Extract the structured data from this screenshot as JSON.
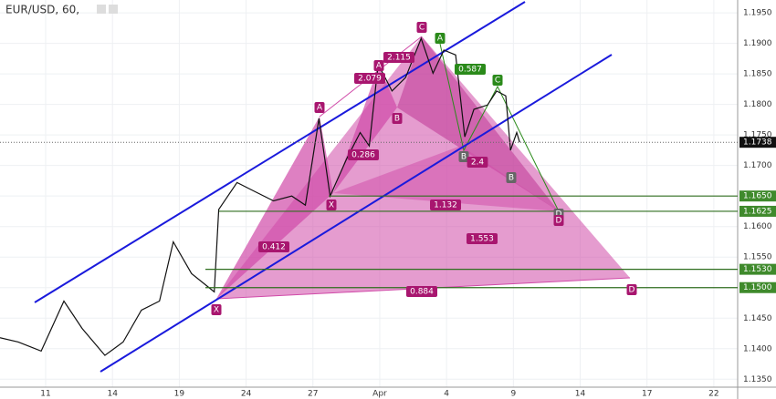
{
  "chart_data": {
    "type": "line",
    "title": "EUR/USD, 60,",
    "x": [
      -2.05,
      -1.23,
      -0.2,
      0.82,
      1.64,
      2.66,
      3.48,
      4.3,
      5.11,
      5.73,
      6.55,
      7.57,
      7.77,
      8.59,
      9.41,
      10.23,
      11.05,
      11.66,
      12.27,
      12.77,
      13.5,
      14.12,
      14.53,
      14.93,
      15.55,
      16.16,
      16.86,
      17.39,
      17.88,
      18.41,
      18.82,
      19.23,
      19.84,
      20.25,
      20.66,
      20.87,
      21.15,
      21.28
    ],
    "series": [
      {
        "name": "EUR/USD",
        "color": "#111111",
        "values": [
          1.1418,
          1.1411,
          1.1396,
          1.1478,
          1.1433,
          1.1389,
          1.1411,
          1.1463,
          1.1478,
          1.1575,
          1.1523,
          1.1493,
          1.1628,
          1.1672,
          1.1657,
          1.1642,
          1.165,
          1.1635,
          1.1777,
          1.165,
          1.171,
          1.1754,
          1.1732,
          1.1866,
          1.1822,
          1.1844,
          1.1908,
          1.1851,
          1.1889,
          1.1881,
          1.1747,
          1.1792,
          1.1799,
          1.1822,
          1.1814,
          1.1725,
          1.1754,
          1.1738
        ]
      }
    ],
    "xlim": [
      -2.05,
      31.07
    ],
    "xticks": [
      {
        "value": 0,
        "label": "11"
      },
      {
        "value": 3,
        "label": "14"
      },
      {
        "value": 6,
        "label": "19"
      },
      {
        "value": 9,
        "label": "24"
      },
      {
        "value": 12,
        "label": "27"
      },
      {
        "value": 15,
        "label": "Apr"
      },
      {
        "value": 18,
        "label": "4"
      },
      {
        "value": 21,
        "label": "9"
      },
      {
        "value": 24,
        "label": "14"
      },
      {
        "value": 27,
        "label": "17"
      },
      {
        "value": 30,
        "label": "22"
      }
    ],
    "ylim": [
      1.1337,
      1.1971
    ],
    "yticks": [
      {
        "value": 1.195,
        "label": "1.1950"
      },
      {
        "value": 1.19,
        "label": "1.1900"
      },
      {
        "value": 1.185,
        "label": "1.1850"
      },
      {
        "value": 1.18,
        "label": "1.1800"
      },
      {
        "value": 1.175,
        "label": "1.1750"
      },
      {
        "value": 1.17,
        "label": "1.1700"
      },
      {
        "value": 1.165,
        "label": "1.1650"
      },
      {
        "value": 1.16,
        "label": "1.1600"
      },
      {
        "value": 1.155,
        "label": "1.1550"
      },
      {
        "value": 1.15,
        "label": "1.1500"
      },
      {
        "value": 1.145,
        "label": "1.1450"
      },
      {
        "value": 1.14,
        "label": "1.1400"
      },
      {
        "value": 1.135,
        "label": "1.1350"
      }
    ],
    "grid": true,
    "levels": [
      {
        "value": 1.165,
        "label": "1.1650"
      },
      {
        "value": 1.1625,
        "label": "1.1625"
      },
      {
        "value": 1.153,
        "label": "1.1530"
      },
      {
        "value": 1.15,
        "label": "1.1500"
      }
    ],
    "last": {
      "value": 1.1738,
      "label": "1.1738"
    },
    "annotations": [
      "C",
      "A",
      "2.115",
      "A",
      "0.587",
      "2.079",
      "C",
      "A",
      "B",
      "0.286",
      "B",
      "2.4",
      "B",
      "X",
      "1.132",
      "D",
      "D",
      "1.553",
      "0.412",
      "D",
      "0.884",
      "X"
    ]
  }
}
